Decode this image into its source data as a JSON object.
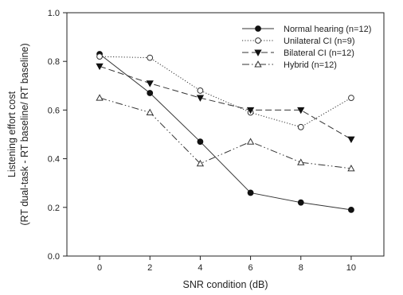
{
  "chart_data": {
    "type": "line",
    "title": "",
    "xlabel": "SNR condition (dB)",
    "ylabel_lines": [
      "Listening effort cost",
      "(RT dual-task - RT baseline/ RT baseline)"
    ],
    "x": [
      0,
      2,
      4,
      6,
      8,
      10
    ],
    "xlim": [
      -1.3,
      11.3
    ],
    "xticks": [
      "0",
      "2",
      "4",
      "6",
      "8",
      "10"
    ],
    "ylim": [
      0.0,
      1.0
    ],
    "yticks": [
      "0.0",
      "0.2",
      "0.4",
      "0.6",
      "0.8",
      "1.0"
    ],
    "grid": false,
    "legend_position": "top-right",
    "series": [
      {
        "name": "Normal hearing (n=12)",
        "values": [
          0.83,
          0.67,
          0.47,
          0.26,
          0.22,
          0.19
        ],
        "marker": "filled-circle",
        "line_style": "solid",
        "color": "#222222"
      },
      {
        "name": "Unilateral CI (n=9)",
        "values": [
          0.82,
          0.815,
          0.68,
          0.59,
          0.53,
          0.65
        ],
        "marker": "open-circle",
        "line_style": "dotted",
        "color": "#222222"
      },
      {
        "name": "Bilateral CI (n=12)",
        "values": [
          0.78,
          0.71,
          0.65,
          0.6,
          0.6,
          0.48
        ],
        "marker": "filled-triangle-down",
        "line_style": "dashed",
        "color": "#222222"
      },
      {
        "name": "Hybrid (n=12)",
        "values": [
          0.65,
          0.59,
          0.38,
          0.47,
          0.385,
          0.36
        ],
        "marker": "open-triangle-up",
        "line_style": "dash-dot-dot",
        "color": "#222222"
      }
    ]
  }
}
